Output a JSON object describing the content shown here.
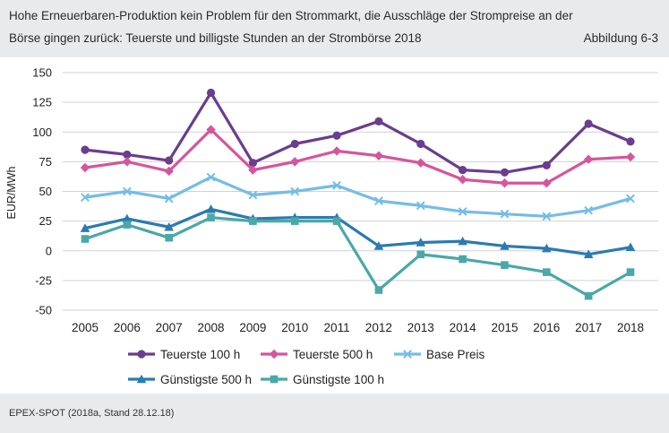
{
  "header": {
    "title_line1": "Hohe Erneuerbaren-Produktion kein Problem für den Strommarkt, die Ausschläge der Strompreise an der",
    "title_line2": "Börse gingen zurück: Teuerste und billigste Stunden an der Strombörse 2018",
    "figure_label": "Abbildung 6-3"
  },
  "footer": {
    "source": "EPEX-SPOT (2018a, Stand 28.12.18)"
  },
  "chart_data": {
    "type": "line",
    "ylabel": "EUR/MWh",
    "xlabel": "",
    "ylim": [
      -50,
      150
    ],
    "yticks": [
      150,
      125,
      100,
      75,
      50,
      25,
      0,
      -25,
      -50
    ],
    "grid": "horizontal",
    "legend_position": "bottom",
    "x": [
      "2005",
      "2006",
      "2007",
      "2008",
      "2009",
      "2010",
      "2011",
      "2012",
      "2013",
      "2014",
      "2015",
      "2016",
      "2017",
      "2018"
    ],
    "series": [
      {
        "name": "Teuerste 100 h",
        "color": "#6a3d8f",
        "marker": "circle",
        "values": [
          85,
          81,
          76,
          133,
          74,
          90,
          97,
          109,
          90,
          68,
          66,
          72,
          107,
          92
        ]
      },
      {
        "name": "Teuerste 500 h",
        "color": "#d6559c",
        "marker": "diamond",
        "values": [
          70,
          75,
          67,
          102,
          68,
          75,
          84,
          80,
          74,
          60,
          57,
          57,
          77,
          79
        ]
      },
      {
        "name": "Base Preis",
        "color": "#74bde6",
        "marker": "x",
        "values": [
          45,
          50,
          44,
          62,
          47,
          50,
          55,
          42,
          38,
          33,
          31,
          29,
          34,
          44
        ]
      },
      {
        "name": "Günstigste 500 h",
        "color": "#2a7bb0",
        "marker": "triangle",
        "values": [
          19,
          27,
          20,
          35,
          27,
          28,
          28,
          4,
          7,
          8,
          4,
          2,
          -3,
          3
        ]
      },
      {
        "name": "Günstigste 100 h",
        "color": "#4aa8a8",
        "marker": "square",
        "values": [
          10,
          22,
          11,
          28,
          25,
          25,
          25,
          -33,
          -3,
          -7,
          -12,
          -18,
          -38,
          -18
        ]
      }
    ]
  }
}
